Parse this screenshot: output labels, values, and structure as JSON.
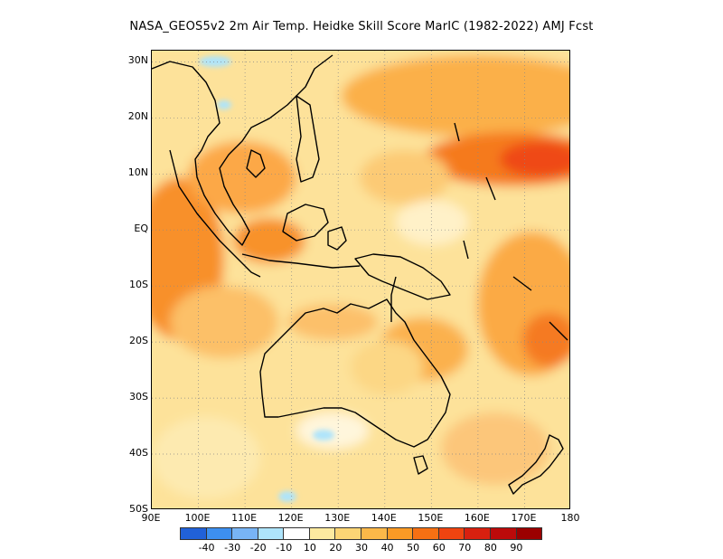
{
  "title": "NASA_GEOS5v2  2m Air Temp. Heidke Skill Score MarIC (1982-2022) AMJ Fcst",
  "map": {
    "lon_range": [
      90,
      180
    ],
    "lat_range": [
      -50,
      32
    ],
    "lat_ticks": [
      {
        "value": 30,
        "label": "30N"
      },
      {
        "value": 20,
        "label": "20N"
      },
      {
        "value": 10,
        "label": "10N"
      },
      {
        "value": 0,
        "label": "EQ"
      },
      {
        "value": -10,
        "label": "10S"
      },
      {
        "value": -20,
        "label": "20S"
      },
      {
        "value": -30,
        "label": "30S"
      },
      {
        "value": -40,
        "label": "40S"
      },
      {
        "value": -50,
        "label": "50S"
      }
    ],
    "lon_ticks": [
      {
        "value": 90,
        "label": "90E"
      },
      {
        "value": 100,
        "label": "100E"
      },
      {
        "value": 110,
        "label": "110E"
      },
      {
        "value": 120,
        "label": "120E"
      },
      {
        "value": 130,
        "label": "130E"
      },
      {
        "value": 140,
        "label": "140E"
      },
      {
        "value": 150,
        "label": "150E"
      },
      {
        "value": 160,
        "label": "160E"
      },
      {
        "value": 170,
        "label": "170E"
      },
      {
        "value": 180,
        "label": "180"
      }
    ],
    "grid": true,
    "grid_style": "dotted"
  },
  "colorbar": {
    "colors": [
      "#2161d8",
      "#3d8ff0",
      "#78b4f5",
      "#aee4fb",
      "#ffffff",
      "#fdeaa0",
      "#fcd575",
      "#fcb849",
      "#fa9a25",
      "#f67013",
      "#ef4410",
      "#d8200f",
      "#bc0a0a",
      "#9b0000"
    ],
    "labels": [
      "-40",
      "-30",
      "-20",
      "-10",
      "10",
      "20",
      "30",
      "40",
      "50",
      "60",
      "70",
      "80",
      "90"
    ]
  }
}
